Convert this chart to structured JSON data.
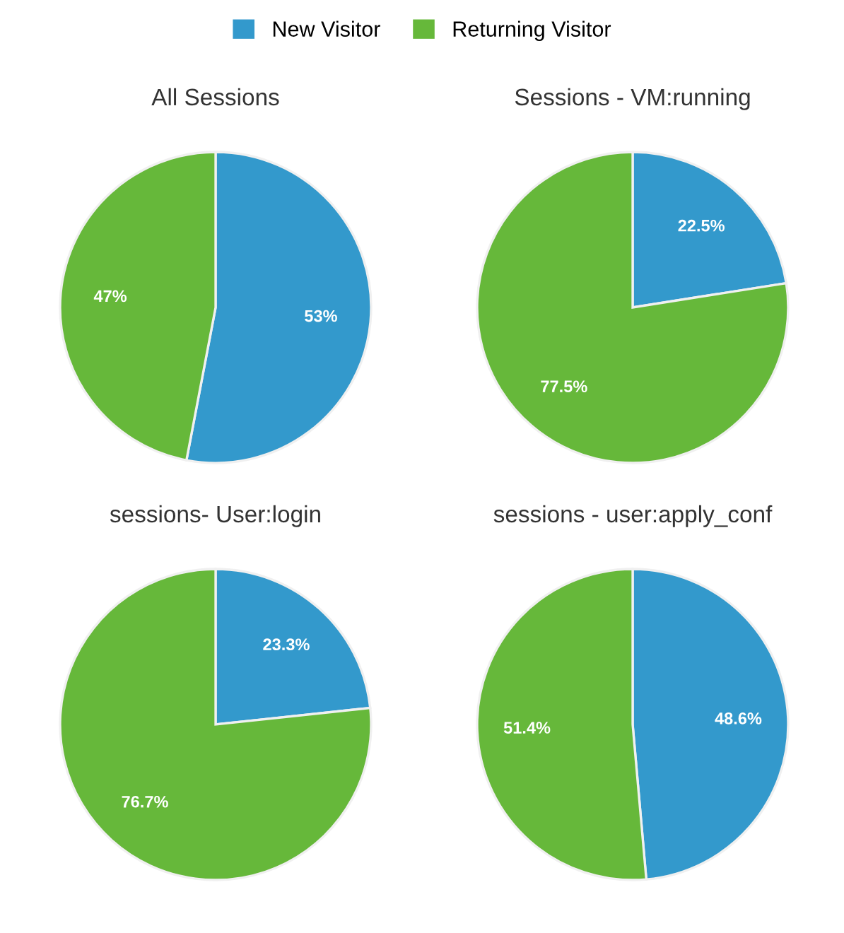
{
  "chart_data": [
    {
      "type": "pie",
      "title": "All Sessions",
      "categories": [
        "New Visitor",
        "Returning Visitor"
      ],
      "values": [
        53,
        47
      ],
      "value_labels": [
        "53%",
        "47%"
      ],
      "colors": [
        "#3399cc",
        "#66b83a"
      ],
      "legend": "top"
    },
    {
      "type": "pie",
      "title": "Sessions - VM:running",
      "categories": [
        null,
        null
      ],
      "values": [
        22.5,
        77.5
      ],
      "value_labels": [
        "22.5%",
        "77.5%"
      ],
      "colors": [
        "#3399cc",
        "#66b83a"
      ]
    },
    {
      "type": "pie",
      "title": "sessions- User:login",
      "categories": [
        null,
        null
      ],
      "values": [
        23.3,
        76.7
      ],
      "value_labels": [
        "23.3%",
        "76.7%"
      ],
      "colors": [
        "#3399cc",
        "#66b83a"
      ]
    },
    {
      "type": "pie",
      "title": "sessions - user:apply_conf",
      "categories": [
        null,
        null
      ],
      "values": [
        48.6,
        51.4
      ],
      "value_labels": [
        "48.6%",
        "51.4%"
      ],
      "colors": [
        "#3399cc",
        "#66b83a"
      ]
    }
  ]
}
